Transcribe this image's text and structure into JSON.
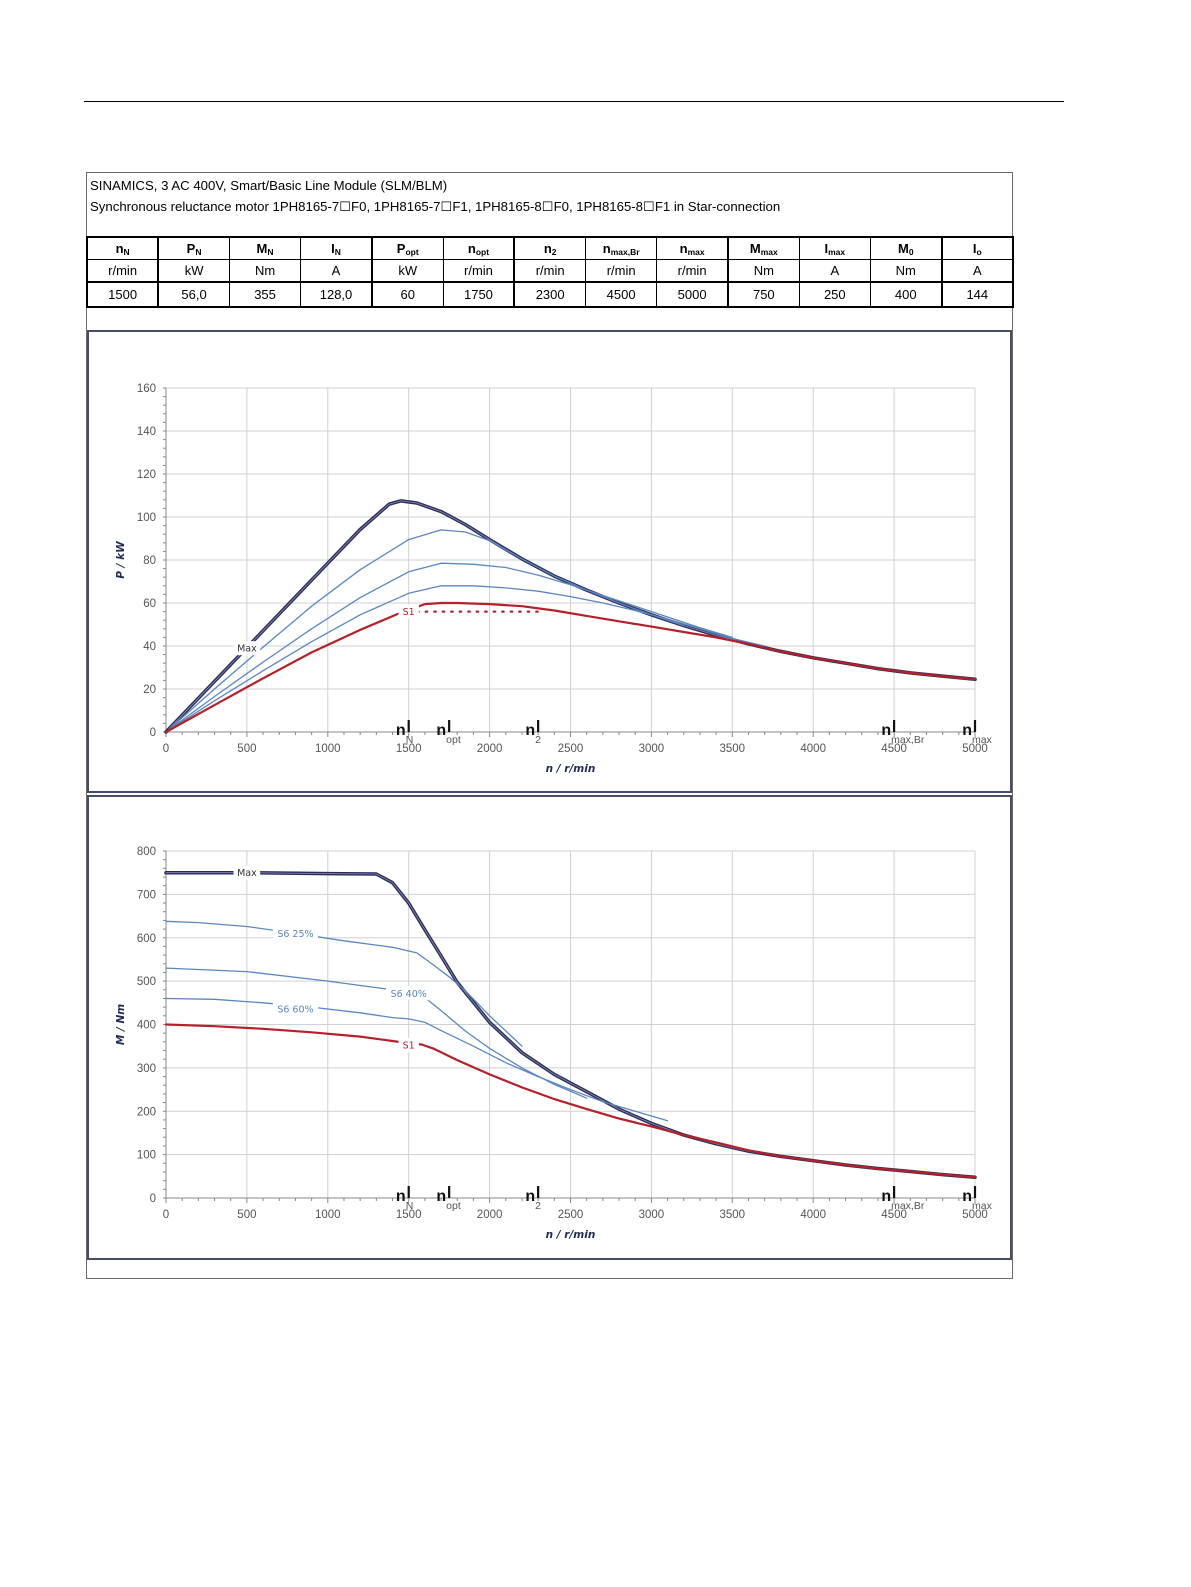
{
  "header": {
    "line1": "SINAMICS, 3 AC 400V, Smart/Basic Line Module (SLM/BLM)",
    "line2": "Synchronous reluctance motor  1PH8165-7☐F0,  1PH8165-7☐F1,  1PH8165-8☐F0,  1PH8165-8☐F1   in Star-connection"
  },
  "table": {
    "columns": [
      {
        "sym": "n",
        "sub": "N",
        "unit": "r/min",
        "value": "1500"
      },
      {
        "sym": "P",
        "sub": "N",
        "unit": "kW",
        "value": "56,0"
      },
      {
        "sym": "M",
        "sub": "N",
        "unit": "Nm",
        "value": "355"
      },
      {
        "sym": "I",
        "sub": "N",
        "unit": "A",
        "value": "128,0"
      },
      {
        "sym": "P",
        "sub": "opt",
        "unit": "kW",
        "value": "60"
      },
      {
        "sym": "n",
        "sub": "opt",
        "unit": "r/min",
        "value": "1750"
      },
      {
        "sym": "n",
        "sub": "2",
        "unit": "r/min",
        "value": "2300"
      },
      {
        "sym": "n",
        "sub": "max,Br",
        "unit": "r/min",
        "value": "4500"
      },
      {
        "sym": "n",
        "sub": "max",
        "unit": "r/min",
        "value": "5000"
      },
      {
        "sym": "M",
        "sub": "max",
        "unit": "Nm",
        "value": "750"
      },
      {
        "sym": "I",
        "sub": "max",
        "unit": "A",
        "value": "250"
      },
      {
        "sym": "M",
        "sub": "0",
        "unit": "Nm",
        "value": "400"
      },
      {
        "sym": "I",
        "sub": "o",
        "unit": "A",
        "value": "144"
      }
    ]
  },
  "colors": {
    "max": "#2b2d55",
    "s6": "#5b86c0",
    "s1": "#b5202a",
    "grid": "#d0d0d0",
    "frame": "#4a4d66"
  },
  "chart_data": [
    {
      "type": "line",
      "xlabel": "n / r/min",
      "ylabel": "P / kW",
      "xlim": [
        0,
        5000
      ],
      "ylim": [
        0,
        160
      ],
      "xticks": [
        0,
        500,
        1000,
        1500,
        2000,
        2500,
        3000,
        3500,
        4000,
        4500,
        5000
      ],
      "yticks": [
        0,
        20,
        40,
        60,
        80,
        100,
        120,
        140,
        160
      ],
      "markers": [
        {
          "sym": "n",
          "sub": "N",
          "x": 1500
        },
        {
          "sym": "n",
          "sub": "opt",
          "x": 1750
        },
        {
          "sym": "n",
          "sub": "2",
          "x": 2300
        },
        {
          "sym": "n",
          "sub": "max,Br",
          "x": 4500
        },
        {
          "sym": "n",
          "sub": "max",
          "x": 5000
        }
      ],
      "series": [
        {
          "name": "Max",
          "style": "max",
          "label_at": [
            500,
            39
          ],
          "x": [
            0,
            200,
            400,
            600,
            800,
            1000,
            1200,
            1380,
            1450,
            1550,
            1700,
            1850,
            2000,
            2200,
            2400,
            2600,
            2800,
            3000,
            3200,
            3400,
            3600,
            3800,
            4000,
            4200,
            4400,
            4600,
            4800,
            5000
          ],
          "y": [
            0,
            15.7,
            31.4,
            47.1,
            62.8,
            78.5,
            94.2,
            106,
            107.5,
            106.5,
            102.5,
            96.5,
            89.5,
            80.5,
            72.5,
            66,
            60,
            54.5,
            49.5,
            45,
            41,
            37.5,
            34.5,
            32,
            29.5,
            27.5,
            26,
            24.5
          ]
        },
        {
          "name": "",
          "style": "s6",
          "x": [
            0,
            300,
            600,
            900,
            1200,
            1500,
            1700,
            1850,
            2000,
            2200,
            2400,
            2600,
            2800,
            3000,
            3200
          ],
          "y": [
            0,
            20,
            39.5,
            58.5,
            75.5,
            89.5,
            94,
            93,
            89,
            80.5,
            72.5,
            66,
            60,
            54.5,
            49.5
          ]
        },
        {
          "name": "",
          "style": "s6",
          "x": [
            0,
            300,
            600,
            900,
            1200,
            1500,
            1700,
            1900,
            2100,
            2300,
            2500,
            2700,
            2900,
            3100,
            3300,
            3500
          ],
          "y": [
            0,
            16.5,
            32.5,
            48,
            62.5,
            74.5,
            78.5,
            78,
            76.5,
            73,
            68.5,
            63.5,
            58.5,
            53.5,
            48.5,
            44
          ]
        },
        {
          "name": "",
          "style": "s6",
          "x": [
            0,
            300,
            600,
            900,
            1200,
            1500,
            1700,
            1900,
            2100,
            2300,
            2500,
            2700,
            2900,
            3100,
            3300,
            3500,
            3700
          ],
          "y": [
            0,
            14.5,
            28.5,
            42,
            54.5,
            64.5,
            68,
            68,
            67,
            65.5,
            63,
            60,
            56.5,
            52.5,
            48,
            43.5,
            40
          ]
        },
        {
          "name": "S1",
          "style": "s1",
          "label_at": [
            1500,
            56
          ],
          "x": [
            0,
            300,
            600,
            900,
            1200,
            1450,
            1600,
            1700,
            1800,
            2000,
            2200,
            2400,
            2600,
            2800,
            3000,
            3200,
            3400,
            3600,
            3800,
            4000,
            4200,
            4400,
            4600,
            4800,
            5000
          ],
          "y": [
            0,
            12.5,
            25,
            37,
            47.5,
            55.5,
            59.5,
            60,
            60,
            59.5,
            58.5,
            56.5,
            54,
            51.5,
            49,
            46.5,
            44,
            41,
            37.5,
            34.5,
            32,
            29.5,
            27.5,
            26,
            24.5
          ]
        },
        {
          "name": "",
          "style": "s1dot",
          "x": [
            1500,
            2300
          ],
          "y": [
            56,
            56
          ]
        }
      ]
    },
    {
      "type": "line",
      "xlabel": "n / r/min",
      "ylabel": "M / Nm",
      "xlim": [
        0,
        5000
      ],
      "ylim": [
        0,
        800
      ],
      "xticks": [
        0,
        500,
        1000,
        1500,
        2000,
        2500,
        3000,
        3500,
        4000,
        4500,
        5000
      ],
      "yticks": [
        0,
        100,
        200,
        300,
        400,
        500,
        600,
        700,
        800
      ],
      "markers": [
        {
          "sym": "n",
          "sub": "N",
          "x": 1500
        },
        {
          "sym": "n",
          "sub": "opt",
          "x": 1750
        },
        {
          "sym": "n",
          "sub": "2",
          "x": 2300
        },
        {
          "sym": "n",
          "sub": "max,Br",
          "x": 4500
        },
        {
          "sym": "n",
          "sub": "max",
          "x": 5000
        }
      ],
      "series": [
        {
          "name": "Max",
          "style": "max",
          "label_at": [
            500,
            750
          ],
          "x": [
            0,
            500,
            1000,
            1300,
            1400,
            1500,
            1600,
            1700,
            1800,
            2000,
            2200,
            2400,
            2600,
            2800,
            3000,
            3200,
            3400,
            3600,
            3800,
            4000,
            4200,
            4400,
            4600,
            4800,
            5000
          ],
          "y": [
            750,
            750,
            748,
            747,
            727,
            680,
            618,
            558,
            497,
            405,
            335,
            285,
            245,
            205,
            172,
            145,
            125,
            108,
            96,
            86,
            76,
            68,
            61,
            54,
            48
          ]
        },
        {
          "name": "S6 25%",
          "style": "s6",
          "label_at": [
            800,
            610
          ],
          "x": [
            0,
            200,
            500,
            800,
            1100,
            1400,
            1550,
            1650,
            1750,
            1850,
            2000,
            2200
          ],
          "y": [
            638,
            635,
            626,
            610,
            593,
            578,
            565,
            538,
            510,
            478,
            420,
            350
          ]
        },
        {
          "name": "S6 40%",
          "style": "s6",
          "label_at": [
            1500,
            472
          ],
          "x": [
            0,
            500,
            1000,
            1400,
            1600,
            1700,
            1850,
            2000,
            2200,
            2400,
            2600
          ],
          "y": [
            530,
            522,
            500,
            480,
            462,
            432,
            385,
            345,
            300,
            262,
            230
          ]
        },
        {
          "name": "S6 60%",
          "style": "s6",
          "label_at": [
            800,
            436
          ],
          "x": [
            0,
            300,
            600,
            900,
            1200,
            1400,
            1500,
            1600,
            1700,
            1900,
            2100,
            2300,
            2500,
            2700,
            2900,
            3100
          ],
          "y": [
            460,
            458,
            450,
            440,
            427,
            416,
            413,
            405,
            386,
            350,
            312,
            280,
            250,
            222,
            200,
            178
          ]
        },
        {
          "name": "S1",
          "style": "s1",
          "label_at": [
            1500,
            353
          ],
          "x": [
            0,
            300,
            600,
            900,
            1200,
            1400,
            1500,
            1580,
            1650,
            1800,
            2000,
            2200,
            2400,
            2600,
            2800,
            3000,
            3200,
            3400,
            3600,
            3800,
            4000,
            4200,
            4400,
            4600,
            4800,
            5000
          ],
          "y": [
            400,
            396,
            390,
            382,
            372,
            362,
            357,
            354,
            345,
            318,
            285,
            255,
            228,
            205,
            183,
            165,
            145,
            128,
            110,
            96,
            86,
            76,
            68,
            61,
            54,
            48
          ]
        }
      ]
    }
  ]
}
